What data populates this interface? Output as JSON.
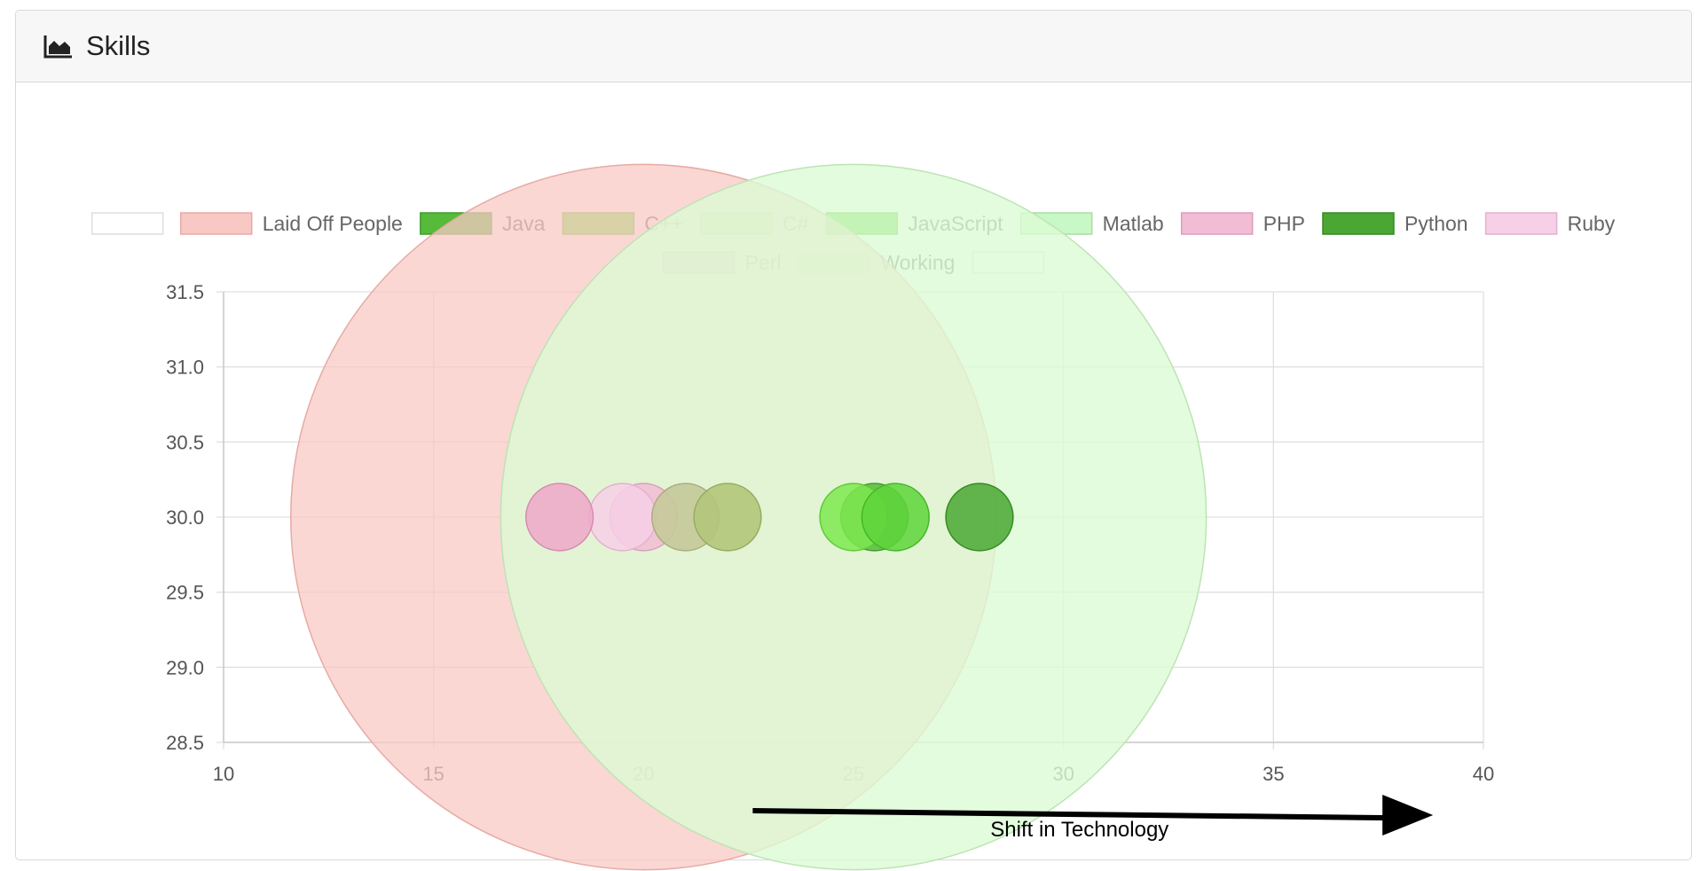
{
  "card": {
    "title": "Skills",
    "icon": "area-chart-icon"
  },
  "chart_data": {
    "type": "bubble",
    "xlim": [
      10,
      40
    ],
    "ylim": [
      28.5,
      31.5
    ],
    "x_ticks": [
      "10",
      "15",
      "20",
      "25",
      "30",
      "35",
      "40"
    ],
    "y_ticks": [
      "31.5",
      "31.0",
      "30.5",
      "30.0",
      "29.5",
      "29.0",
      "28.5"
    ],
    "grid": true,
    "legend_position": "top",
    "series": [
      {
        "name": "",
        "fill": "#ffffff",
        "stroke": "#dddddd",
        "points": []
      },
      {
        "name": "Laid Off People",
        "fill": "#f8c9c4",
        "stroke": "#e8aaa4",
        "opacity": 0.75,
        "points": [
          {
            "x": 20,
            "y": 30,
            "r": 8.4
          }
        ]
      },
      {
        "name": "Java",
        "fill": "#56bb3a",
        "stroke": "#3f9c28",
        "points": [
          {
            "x": 25.5,
            "y": 30,
            "r": 0.8
          }
        ]
      },
      {
        "name": "C++",
        "fill": "#7de84f",
        "stroke": "#5fc936",
        "points": [
          {
            "x": 25,
            "y": 30,
            "r": 0.8
          }
        ]
      },
      {
        "name": "C#",
        "fill": "#aaf08a",
        "stroke": "#8bd36b",
        "points": []
      },
      {
        "name": "JavaScript",
        "fill": "#5ed53a",
        "stroke": "#45b427",
        "points": [
          {
            "x": 26,
            "y": 30,
            "r": 0.8
          }
        ]
      },
      {
        "name": "Matlab",
        "fill": "#c8f8c5",
        "stroke": "#a8dca5",
        "points": []
      },
      {
        "name": "PHP",
        "fill": "#f1bcd4",
        "stroke": "#d99fba",
        "points": [
          {
            "x": 20,
            "y": 30,
            "r": 0.8
          }
        ]
      },
      {
        "name": "Python",
        "fill": "#4aa733",
        "stroke": "#348a20",
        "points": [
          {
            "x": 28,
            "y": 30,
            "r": 0.8
          }
        ]
      },
      {
        "name": "Ruby",
        "fill": "#f7cfe6",
        "stroke": "#e2b1cf",
        "points": [
          {
            "x": 19.5,
            "y": 30,
            "r": 0.8
          }
        ]
      },
      {
        "name": "Perl",
        "fill": "#eea7c9",
        "stroke": "#d68aae",
        "points": [
          {
            "x": 18,
            "y": 30,
            "r": 0.8
          }
        ]
      },
      {
        "name": "Working",
        "fill": "#dcfbd5",
        "stroke": "#bde3b5",
        "opacity": 0.8,
        "points": [
          {
            "x": 25,
            "y": 30,
            "r": 8.4
          }
        ]
      },
      {
        "name": "",
        "fill": "#ffffff",
        "stroke": "#dddddd",
        "points": []
      }
    ],
    "overlap_points": [
      {
        "x": 21,
        "y": 30,
        "r": 0.8,
        "fill": "#c5c99a",
        "stroke": "#a9ad7e"
      },
      {
        "x": 22,
        "y": 30,
        "r": 0.8,
        "fill": "#b2c77a",
        "stroke": "#96ab5f"
      }
    ],
    "annotation": {
      "text": "Shift in Technology",
      "x_from": 22.6,
      "x_to": 38.8
    }
  }
}
